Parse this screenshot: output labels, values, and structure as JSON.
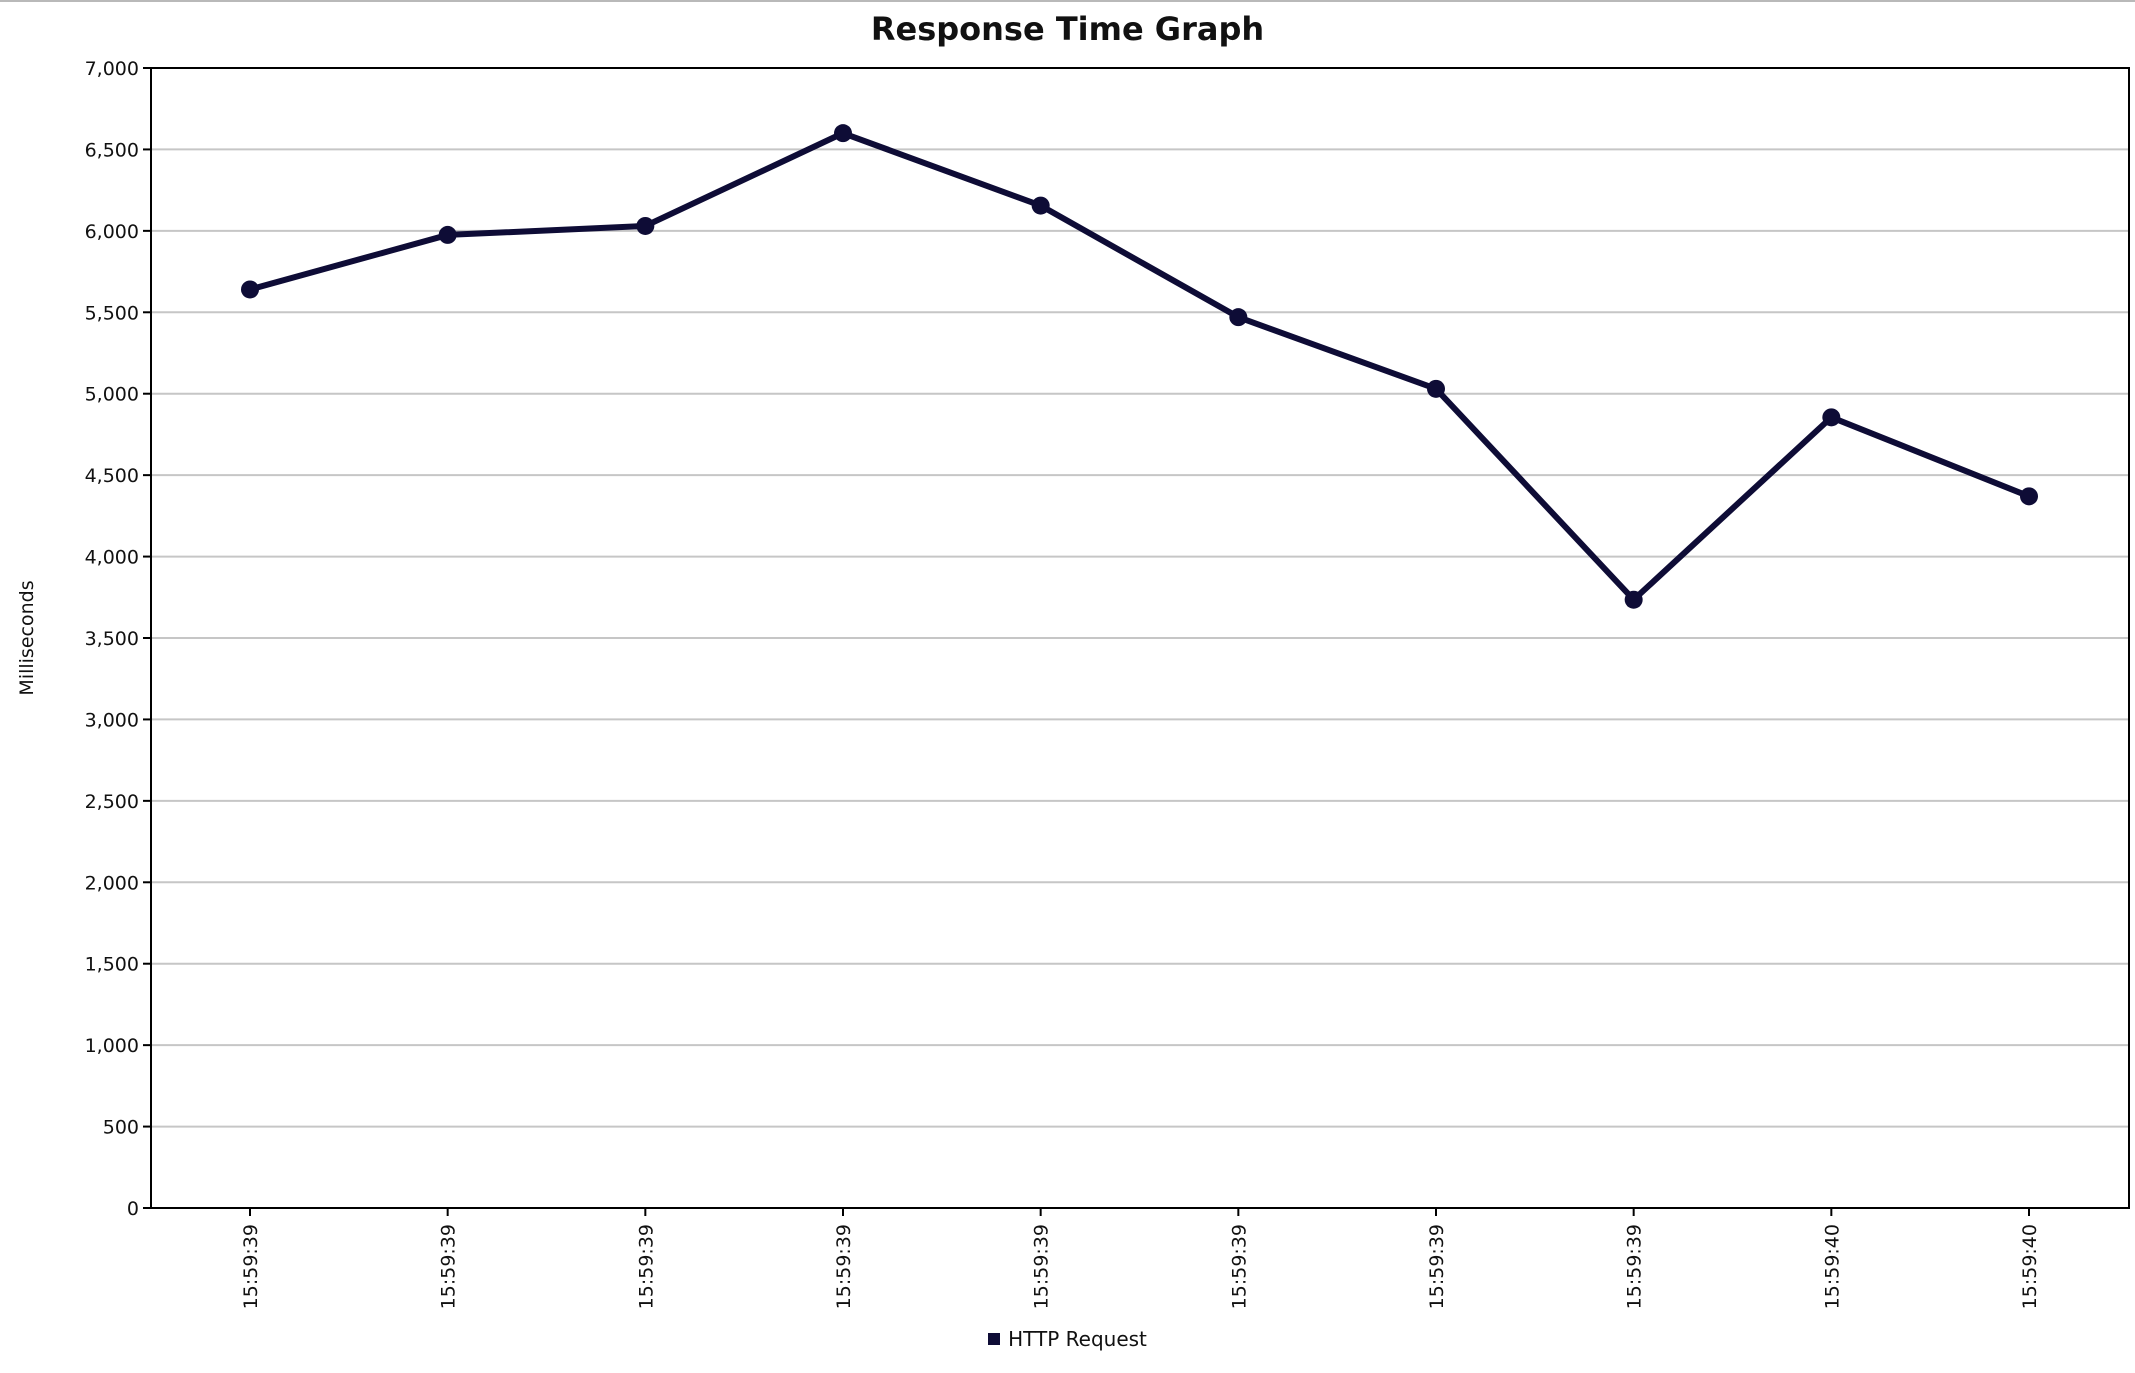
{
  "chart_data": {
    "type": "line",
    "title": "Response Time Graph",
    "xlabel": "",
    "ylabel": "Milliseconds",
    "categories": [
      "15:59:39",
      "15:59:39",
      "15:59:39",
      "15:59:39",
      "15:59:39",
      "15:59:39",
      "15:59:39",
      "15:59:39",
      "15:59:40",
      "15:59:40"
    ],
    "series": [
      {
        "name": "HTTP Request",
        "color": "#0e0c36",
        "values": [
          5640,
          5975,
          6030,
          6600,
          6155,
          5470,
          5030,
          3735,
          4855,
          4370
        ]
      }
    ],
    "ylim": [
      0,
      7000
    ],
    "yticks": [
      0,
      500,
      1000,
      1500,
      2000,
      2500,
      3000,
      3500,
      4000,
      4500,
      5000,
      5500,
      6000,
      6500,
      7000
    ],
    "ytick_labels": [
      "0",
      "500",
      "1,000",
      "1,500",
      "2,000",
      "2,500",
      "3,000",
      "3,500",
      "4,000",
      "4,500",
      "5,000",
      "5,500",
      "6,000",
      "6,500",
      "7,000"
    ],
    "grid": true,
    "legend_position": "bottom-center",
    "colors": {
      "line": "#0e0c36",
      "grid": "#c6c6c6",
      "axis": "#000000"
    }
  }
}
